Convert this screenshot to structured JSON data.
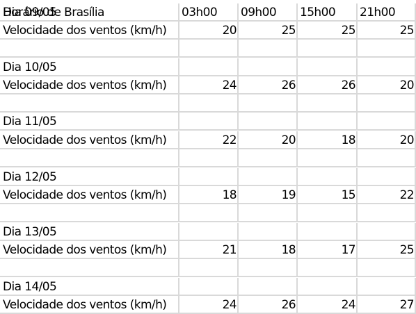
{
  "header": {
    "overlap_a": "Dia 09/05",
    "overlap_b": "Horário de Brasília",
    "times": [
      "03h00",
      "09h00",
      "15h00",
      "21h00"
    ]
  },
  "days": [
    {
      "label": "Dia 09/05",
      "metric": "Velocidade dos ventos (km/h)",
      "values": [
        "20",
        "25",
        "25",
        "25"
      ]
    },
    {
      "label": "Dia 10/05",
      "metric": "Velocidade dos ventos (km/h)",
      "values": [
        "24",
        "26",
        "26",
        "20"
      ]
    },
    {
      "label": "Dia 11/05",
      "metric": "Velocidade dos ventos (km/h)",
      "values": [
        "22",
        "20",
        "18",
        "20"
      ]
    },
    {
      "label": "Dia 12/05",
      "metric": "Velocidade dos ventos (km/h)",
      "values": [
        "18",
        "19",
        "15",
        "22"
      ]
    },
    {
      "label": "Dia 13/05",
      "metric": "Velocidade dos ventos (km/h)",
      "values": [
        "21",
        "18",
        "17",
        "25"
      ]
    },
    {
      "label": "Dia 14/05",
      "metric": "Velocidade dos ventos (km/h)",
      "values": [
        "24",
        "26",
        "24",
        "27"
      ]
    }
  ]
}
